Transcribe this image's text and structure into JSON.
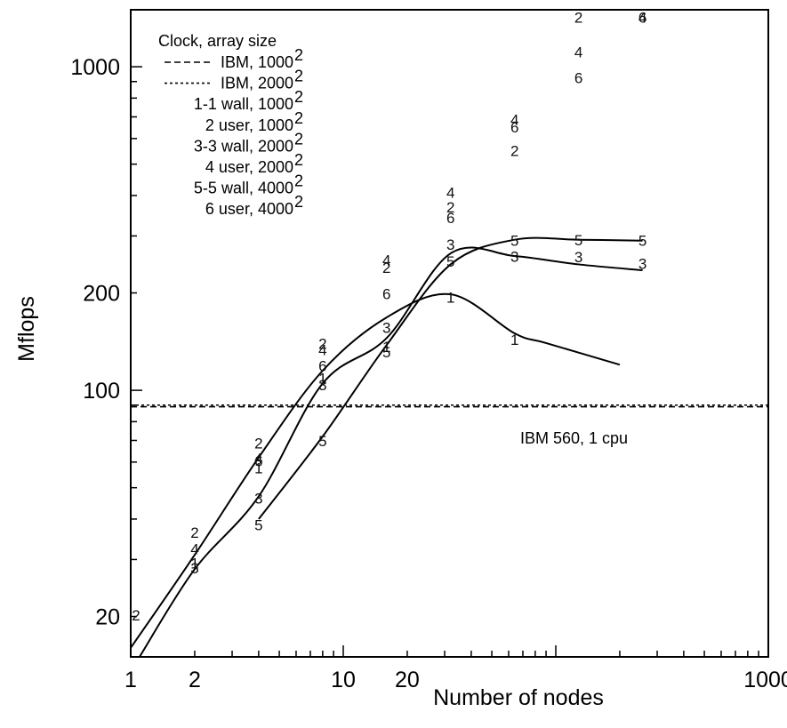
{
  "chart_data": {
    "type": "line",
    "title": "",
    "xlabel": "Number of nodes",
    "ylabel": "Mflops",
    "x_scale": "log",
    "y_scale": "log",
    "xlim": [
      1,
      1000
    ],
    "ylim": [
      15,
      1500
    ],
    "x_tick_labels": [
      {
        "value": 1,
        "label": "1"
      },
      {
        "value": 2,
        "label": "2"
      },
      {
        "value": 10,
        "label": "10"
      },
      {
        "value": 20,
        "label": "20"
      },
      {
        "value": 1000,
        "label": "1000"
      }
    ],
    "y_tick_labels": [
      {
        "value": 20,
        "label": "20"
      },
      {
        "value": 100,
        "label": "100"
      },
      {
        "value": 200,
        "label": "200"
      },
      {
        "value": 1000,
        "label": "1000"
      }
    ],
    "legend": {
      "title": "Clock, array size",
      "position": "top-left",
      "entries": [
        {
          "line": "dashed",
          "label": "IBM, 1000",
          "sup": "2"
        },
        {
          "line": "dotted",
          "label": "IBM, 2000",
          "sup": "2"
        },
        {
          "line": "",
          "label": "1-1 wall, 1000",
          "sup": "2"
        },
        {
          "line": "",
          "label": "2 user, 1000",
          "sup": "2"
        },
        {
          "line": "",
          "label": "3-3 wall, 2000",
          "sup": "2"
        },
        {
          "line": "",
          "label": "4 user, 2000",
          "sup": "2"
        },
        {
          "line": "",
          "label": "5-5 wall, 4000",
          "sup": "2"
        },
        {
          "line": "",
          "label": "6 user, 4000",
          "sup": "2"
        }
      ]
    },
    "annotation": "IBM 560, 1 cpu",
    "reference_lines": [
      {
        "name": "IBM, 1000²",
        "style": "dashed",
        "y": 89
      },
      {
        "name": "IBM, 2000²",
        "style": "dotted",
        "y": 90
      }
    ],
    "curves": [
      {
        "series": "1",
        "x": [
          1,
          2,
          4,
          8,
          16,
          32,
          64,
          90,
          200
        ],
        "y": [
          16,
          31,
          62,
          115,
          168,
          198,
          150,
          140,
          120
        ]
      },
      {
        "series": "3",
        "x": [
          1.1,
          2,
          4,
          8,
          16,
          32,
          64,
          128,
          256
        ],
        "y": [
          15,
          28,
          47,
          105,
          145,
          265,
          260,
          245,
          235
        ]
      },
      {
        "series": "5",
        "x": [
          4,
          8,
          16,
          32,
          64,
          128,
          256
        ],
        "y": [
          40,
          72,
          138,
          245,
          292,
          292,
          290
        ]
      }
    ],
    "series": [
      {
        "name": "1",
        "points": [
          [
            2,
            29
          ],
          [
            4,
            57
          ],
          [
            8,
            108
          ],
          [
            16,
            135
          ],
          [
            32,
            192
          ],
          [
            64,
            142
          ]
        ]
      },
      {
        "name": "2",
        "points": [
          [
            1,
            20
          ],
          [
            2,
            36
          ],
          [
            4,
            68
          ],
          [
            8,
            138
          ],
          [
            16,
            237
          ],
          [
            32,
            365
          ],
          [
            64,
            545
          ],
          [
            128,
            1500
          ]
        ]
      },
      {
        "name": "3",
        "points": [
          [
            2,
            28
          ],
          [
            4,
            46
          ],
          [
            8,
            103
          ],
          [
            16,
            155
          ],
          [
            32,
            280
          ],
          [
            64,
            257
          ],
          [
            128,
            256
          ],
          [
            256,
            244
          ]
        ]
      },
      {
        "name": "4",
        "points": [
          [
            2,
            32
          ],
          [
            4,
            61
          ],
          [
            8,
            132
          ],
          [
            16,
            250
          ],
          [
            32,
            405
          ],
          [
            64,
            680
          ],
          [
            128,
            1100
          ],
          [
            256,
            1490
          ]
        ]
      },
      {
        "name": "5",
        "points": [
          [
            4,
            38
          ],
          [
            8,
            69
          ],
          [
            16,
            130
          ],
          [
            32,
            248
          ],
          [
            64,
            288
          ],
          [
            128,
            289
          ],
          [
            256,
            288
          ]
        ]
      },
      {
        "name": "6",
        "points": [
          [
            4,
            60
          ],
          [
            8,
            118
          ],
          [
            16,
            197
          ],
          [
            32,
            338
          ],
          [
            64,
            645
          ],
          [
            128,
            915
          ],
          [
            256,
            1530
          ]
        ]
      }
    ]
  }
}
